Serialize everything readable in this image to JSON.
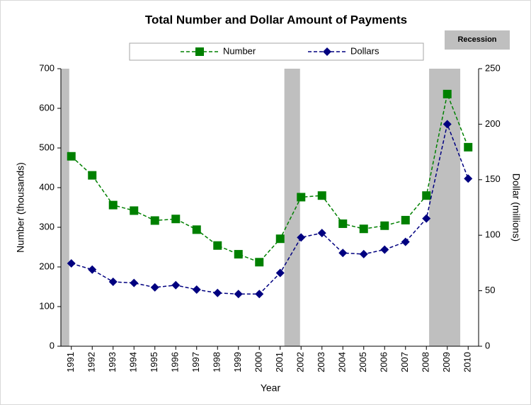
{
  "chart_data": {
    "type": "line",
    "title": "Total Number and Dollar Amount of Payments",
    "x_label": "Year",
    "y_label": "Number (thousands)",
    "y2_label": "Dollar (millions)",
    "recession_label": "Recession",
    "recession_color": "#bfbfbf",
    "recessions": [
      [
        1990.5,
        1990.9
      ],
      [
        2001.2,
        2001.95
      ],
      [
        2008.13,
        2009.62
      ]
    ],
    "x": [
      1991,
      1992,
      1993,
      1994,
      1995,
      1996,
      1997,
      1998,
      1999,
      2000,
      2001,
      2002,
      2003,
      2004,
      2005,
      2006,
      2007,
      2008,
      2009,
      2010
    ],
    "xlim": [
      1990.5,
      2010.5
    ],
    "xticks": [
      1991,
      1992,
      1993,
      1994,
      1995,
      1996,
      1997,
      1998,
      1999,
      2000,
      2001,
      2002,
      2003,
      2004,
      2005,
      2006,
      2007,
      2008,
      2009,
      2010
    ],
    "ylim": [
      0,
      700
    ],
    "yticks": [
      0,
      100,
      200,
      300,
      400,
      500,
      600,
      700
    ],
    "y2lim": [
      0,
      250
    ],
    "y2ticks": [
      0,
      50,
      100,
      150,
      200,
      250
    ],
    "series": [
      {
        "name": "Number",
        "color": "#008000",
        "marker": "square",
        "values": [
          479,
          431,
          356,
          342,
          317,
          321,
          294,
          254,
          232,
          212,
          271,
          376,
          380,
          309,
          296,
          304,
          318,
          380,
          636,
          502
        ]
      },
      {
        "name": "Dollars",
        "color": "#000080",
        "marker": "diamond",
        "axis": "y2",
        "values": [
          74.6,
          69,
          58,
          57,
          53,
          55,
          51,
          48,
          47,
          47,
          66,
          98,
          102,
          84,
          83,
          87,
          94,
          115,
          200,
          151
        ]
      }
    ]
  }
}
